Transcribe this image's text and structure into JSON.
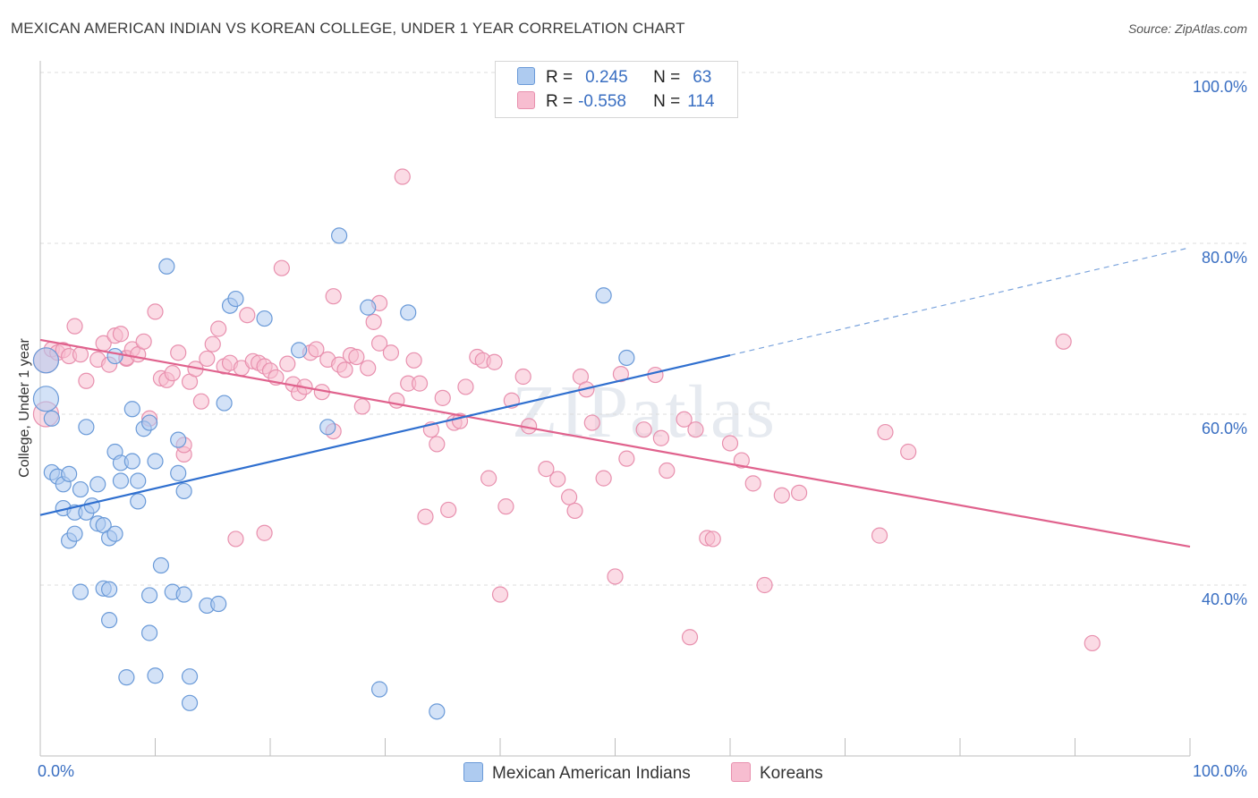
{
  "title": "MEXICAN AMERICAN INDIAN VS KOREAN COLLEGE, UNDER 1 YEAR CORRELATION CHART",
  "source": "Source: ZipAtlas.com",
  "watermark": "ZIPatlas",
  "legend": {
    "r_label": "R =",
    "n_label": "N =",
    "rows": [
      {
        "r": "0.245",
        "n": "63"
      },
      {
        "r": "-0.558",
        "n": "114"
      }
    ]
  },
  "x_tick_left": "0.0%",
  "x_tick_right": "100.0%",
  "y_ticks": [
    "100.0%",
    "80.0%",
    "60.0%",
    "40.0%"
  ],
  "colors": {
    "blue_fill": "#aecbf0",
    "blue_stroke": "#6a9ad8",
    "blue_line": "#2f6fcf",
    "pink_fill": "#f7bdd0",
    "pink_stroke": "#e890ae",
    "pink_line": "#e0628d",
    "grid": "#dcdcdc",
    "tick_text": "#3a6fc2"
  },
  "chart_data": {
    "type": "scatter",
    "title": "MEXICAN AMERICAN INDIAN VS KOREAN COLLEGE, UNDER 1 YEAR CORRELATION CHART",
    "xlabel": "",
    "ylabel": "College, Under 1 year",
    "xlim": [
      0,
      100
    ],
    "ylim": [
      20,
      100
    ],
    "y_gridlines": [
      40,
      60,
      80,
      100
    ],
    "series": [
      {
        "name": "Mexican American Indians",
        "r": 0.245,
        "n": 63,
        "trend": {
          "x": [
            0,
            60
          ],
          "y": [
            48.2,
            66.9
          ]
        },
        "trend_dashed": {
          "x": [
            60,
            100
          ],
          "y": [
            66.9,
            79.5
          ]
        },
        "points": [
          [
            0.5,
            66.3
          ],
          [
            0.5,
            61.8
          ],
          [
            1.0,
            59.5
          ],
          [
            1.0,
            53.2
          ],
          [
            1.5,
            52.7
          ],
          [
            2.0,
            49.0
          ],
          [
            2.0,
            51.8
          ],
          [
            2.5,
            45.2
          ],
          [
            3.0,
            46.0
          ],
          [
            2.5,
            53.0
          ],
          [
            3.0,
            48.5
          ],
          [
            3.5,
            51.2
          ],
          [
            3.5,
            39.2
          ],
          [
            4.0,
            48.5
          ],
          [
            4.5,
            49.3
          ],
          [
            4.0,
            58.5
          ],
          [
            5.0,
            51.8
          ],
          [
            5.0,
            47.2
          ],
          [
            5.5,
            47.0
          ],
          [
            5.5,
            39.6
          ],
          [
            6.0,
            39.5
          ],
          [
            6.0,
            35.9
          ],
          [
            6.0,
            45.5
          ],
          [
            6.5,
            46.0
          ],
          [
            6.5,
            55.6
          ],
          [
            6.5,
            66.8
          ],
          [
            7.0,
            54.3
          ],
          [
            7.0,
            52.2
          ],
          [
            7.5,
            29.2
          ],
          [
            8.0,
            54.5
          ],
          [
            8.0,
            60.6
          ],
          [
            8.5,
            52.2
          ],
          [
            8.5,
            49.8
          ],
          [
            9.0,
            58.3
          ],
          [
            9.5,
            34.4
          ],
          [
            9.5,
            59.0
          ],
          [
            9.5,
            38.8
          ],
          [
            10.0,
            54.5
          ],
          [
            10.0,
            29.4
          ],
          [
            10.5,
            42.3
          ],
          [
            11.0,
            77.3
          ],
          [
            11.5,
            39.2
          ],
          [
            12.0,
            53.1
          ],
          [
            12.0,
            57.0
          ],
          [
            12.5,
            51.0
          ],
          [
            12.5,
            38.9
          ],
          [
            13.0,
            29.3
          ],
          [
            13.0,
            26.2
          ],
          [
            14.5,
            37.6
          ],
          [
            15.5,
            37.8
          ],
          [
            16.0,
            61.3
          ],
          [
            16.5,
            72.7
          ],
          [
            17.0,
            73.5
          ],
          [
            19.5,
            71.2
          ],
          [
            22.5,
            67.5
          ],
          [
            25.0,
            58.5
          ],
          [
            26.0,
            80.9
          ],
          [
            28.5,
            72.5
          ],
          [
            29.5,
            27.8
          ],
          [
            32.0,
            71.9
          ],
          [
            34.5,
            25.2
          ],
          [
            49.0,
            73.9
          ],
          [
            51.0,
            66.6
          ]
        ]
      },
      {
        "name": "Koreans",
        "r": -0.558,
        "n": 114,
        "trend": {
          "x": [
            0,
            100
          ],
          "y": [
            68.7,
            44.5
          ]
        },
        "points": [
          [
            0.5,
            66.3
          ],
          [
            0.5,
            60.0
          ],
          [
            1.0,
            67.6
          ],
          [
            1.5,
            67.2
          ],
          [
            2.0,
            67.5
          ],
          [
            2.5,
            66.8
          ],
          [
            3.0,
            70.3
          ],
          [
            3.5,
            67.0
          ],
          [
            4.0,
            63.9
          ],
          [
            5.0,
            66.4
          ],
          [
            5.5,
            68.3
          ],
          [
            6.0,
            65.8
          ],
          [
            6.5,
            69.2
          ],
          [
            7.0,
            69.4
          ],
          [
            7.5,
            66.5
          ],
          [
            7.5,
            66.6
          ],
          [
            8.0,
            67.6
          ],
          [
            8.5,
            67.0
          ],
          [
            9.0,
            68.5
          ],
          [
            9.5,
            59.5
          ],
          [
            10.0,
            72.0
          ],
          [
            10.5,
            64.2
          ],
          [
            11.0,
            64.0
          ],
          [
            11.5,
            64.8
          ],
          [
            12.0,
            67.2
          ],
          [
            12.5,
            55.3
          ],
          [
            12.5,
            56.4
          ],
          [
            13.0,
            63.8
          ],
          [
            13.5,
            65.3
          ],
          [
            14.0,
            61.5
          ],
          [
            14.5,
            66.5
          ],
          [
            15.0,
            68.2
          ],
          [
            15.5,
            70.0
          ],
          [
            16.0,
            65.6
          ],
          [
            16.5,
            66.0
          ],
          [
            17.0,
            45.4
          ],
          [
            17.5,
            65.4
          ],
          [
            18.0,
            71.6
          ],
          [
            18.5,
            66.2
          ],
          [
            19.0,
            66.0
          ],
          [
            19.5,
            46.1
          ],
          [
            19.5,
            65.6
          ],
          [
            20.0,
            65.1
          ],
          [
            20.5,
            64.3
          ],
          [
            21.0,
            77.1
          ],
          [
            21.5,
            65.9
          ],
          [
            22.0,
            63.5
          ],
          [
            22.5,
            62.5
          ],
          [
            23.0,
            63.2
          ],
          [
            23.5,
            67.2
          ],
          [
            24.0,
            67.6
          ],
          [
            24.5,
            62.6
          ],
          [
            25.0,
            66.4
          ],
          [
            25.5,
            58.0
          ],
          [
            25.5,
            73.8
          ],
          [
            26.0,
            65.8
          ],
          [
            26.5,
            65.2
          ],
          [
            27.0,
            66.9
          ],
          [
            27.5,
            66.7
          ],
          [
            28.0,
            60.9
          ],
          [
            28.5,
            65.4
          ],
          [
            29.0,
            70.8
          ],
          [
            29.5,
            68.3
          ],
          [
            29.5,
            73.0
          ],
          [
            30.5,
            67.2
          ],
          [
            31.0,
            61.6
          ],
          [
            31.5,
            87.8
          ],
          [
            32.0,
            63.6
          ],
          [
            32.5,
            66.3
          ],
          [
            33.0,
            63.6
          ],
          [
            33.5,
            48.0
          ],
          [
            34.0,
            58.2
          ],
          [
            34.5,
            56.5
          ],
          [
            35.0,
            61.9
          ],
          [
            35.5,
            48.8
          ],
          [
            36.0,
            59.0
          ],
          [
            36.5,
            59.2
          ],
          [
            37.0,
            63.2
          ],
          [
            38.0,
            66.7
          ],
          [
            38.5,
            66.3
          ],
          [
            39.0,
            52.5
          ],
          [
            39.5,
            66.1
          ],
          [
            40.0,
            38.9
          ],
          [
            40.5,
            49.2
          ],
          [
            41.0,
            61.6
          ],
          [
            42.0,
            64.4
          ],
          [
            42.5,
            58.6
          ],
          [
            44.0,
            53.6
          ],
          [
            45.0,
            52.4
          ],
          [
            46.0,
            50.3
          ],
          [
            46.5,
            48.7
          ],
          [
            47.0,
            64.4
          ],
          [
            47.5,
            62.9
          ],
          [
            48.0,
            59.0
          ],
          [
            49.0,
            52.5
          ],
          [
            50.0,
            41.0
          ],
          [
            50.5,
            64.7
          ],
          [
            51.0,
            54.8
          ],
          [
            52.5,
            58.2
          ],
          [
            53.5,
            64.6
          ],
          [
            54.0,
            57.2
          ],
          [
            54.5,
            53.4
          ],
          [
            56.0,
            59.4
          ],
          [
            57.0,
            58.2
          ],
          [
            58.0,
            45.5
          ],
          [
            58.5,
            45.4
          ],
          [
            60.0,
            56.6
          ],
          [
            61.0,
            54.6
          ],
          [
            62.0,
            51.9
          ],
          [
            63.0,
            40.0
          ],
          [
            66.0,
            50.8
          ],
          [
            73.0,
            45.8
          ],
          [
            73.5,
            57.9
          ],
          [
            75.5,
            55.6
          ],
          [
            89.0,
            68.5
          ],
          [
            91.5,
            33.2
          ],
          [
            56.5,
            33.9
          ],
          [
            64.5,
            50.5
          ]
        ]
      }
    ]
  }
}
